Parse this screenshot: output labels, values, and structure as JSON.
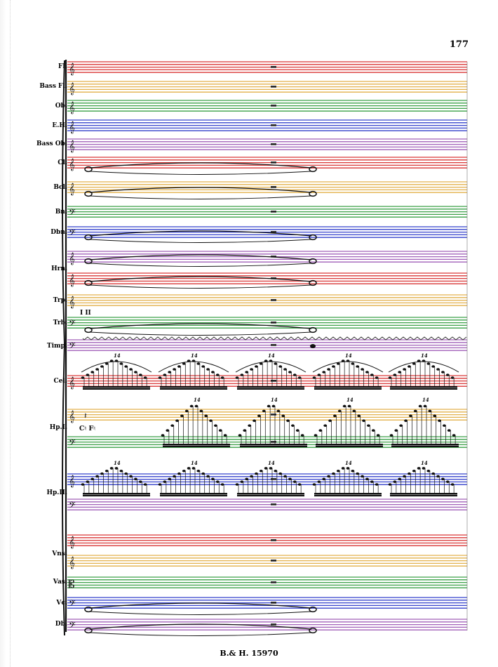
{
  "page_number": "177",
  "footer": "B.& H. 15970",
  "annotations": {
    "trb": "I II",
    "harp": "C♮ F♮",
    "tuplet": "14"
  },
  "instruments": [
    "Fl.",
    "Bass Fl.",
    "Ob.",
    "E.H.",
    "Bass Ob.",
    "Cl.",
    "Bcl.",
    "Bn.",
    "Dbn.",
    "Hrn.",
    "Trp.",
    "Trb.",
    "Timp.",
    "Cel.",
    "Hp.I.",
    "Hp.II.",
    "Vns.",
    "Vas.",
    "Vc.",
    "Db."
  ],
  "colors": {
    "red": "#d93636",
    "orange": "#e3b04a",
    "green": "#3aa047",
    "blue": "#3340cc",
    "purple": "#a05fb8"
  }
}
